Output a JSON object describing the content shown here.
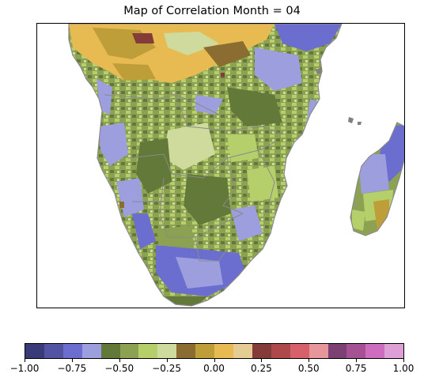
{
  "title": "Map of Correlation Month = 04",
  "colorbar": {
    "colors": [
      "#393b79",
      "#5254a3",
      "#6b6ecf",
      "#9c9ede",
      "#637939",
      "#8ca252",
      "#b5cf6b",
      "#cedb9c",
      "#8c6d31",
      "#bd9e39",
      "#e7ba52",
      "#e7cb94",
      "#843c39",
      "#ad494a",
      "#d6616b",
      "#e7969c",
      "#7b4173",
      "#a55194",
      "#ce6dbd",
      "#de9ed6"
    ],
    "ticks": [
      "−1.00",
      "−0.75",
      "−0.50",
      "−0.25",
      "0.00",
      "0.25",
      "0.50",
      "0.75",
      "1.00"
    ],
    "range": [
      -1.0,
      1.0
    ]
  },
  "map": {
    "region": "Southern Africa and Madagascar",
    "ocean_color": "#ffffff",
    "border_color": "#8a8a8a",
    "dominant_colors": [
      "#8ca252",
      "#b5cf6b",
      "#637939",
      "#9c9ede",
      "#6b6ecf",
      "#e7ba52",
      "#bd9e39",
      "#8c6d31",
      "#cedb9c",
      "#843c39"
    ]
  }
}
